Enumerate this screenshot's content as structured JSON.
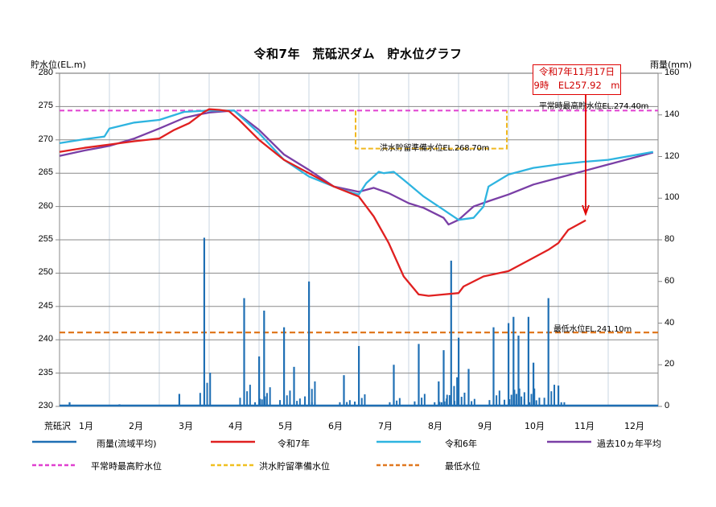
{
  "title": "令和7年　荒砥沢ダム　貯水位グラフ",
  "axes": {
    "left_title": "貯水位(EL.m)",
    "right_title": "雨量(mm)",
    "left_ticks": [
      "280",
      "275",
      "270",
      "265",
      "260",
      "255",
      "250",
      "245",
      "240",
      "235",
      "230"
    ],
    "right_ticks": [
      "160",
      "140",
      "120",
      "100",
      "80",
      "60",
      "40",
      "20",
      "0"
    ],
    "x_prefix": "荒砥沢",
    "months": [
      "1月",
      "2月",
      "3月",
      "4月",
      "5月",
      "6月",
      "7月",
      "8月",
      "9月",
      "10月",
      "11月",
      "12月"
    ]
  },
  "callout": {
    "line1": "令和7年11月17日",
    "line2": "9時　EL257.92　m"
  },
  "annotations": {
    "normal_max": "平常時最高貯水位EL.274.40m",
    "flood_prep": "洪水貯留準備水位EL.268.70m",
    "min_level": "最低水位EL.241.10m"
  },
  "legend": [
    {
      "label": "雨量(流域平均)",
      "color": "#1f6fb4",
      "style": "solid"
    },
    {
      "label": "令和7年",
      "color": "#e02020",
      "style": "solid"
    },
    {
      "label": "令和6年",
      "color": "#2eb4e0",
      "style": "solid"
    },
    {
      "label": "過去10ヵ年平均",
      "color": "#7a3fa6",
      "style": "solid"
    },
    {
      "label": "平常時最高貯水位",
      "color": "#e040d0",
      "style": "dashed"
    },
    {
      "label": "洪水貯留準備水位",
      "color": "#f0c020",
      "style": "dashed"
    },
    {
      "label": "最低水位",
      "color": "#e07820",
      "style": "dashed"
    }
  ],
  "chart_data": {
    "type": "line",
    "title": "令和7年　荒砥沢ダム　貯水位グラフ",
    "xlabel": "",
    "ylabel": "貯水位(EL.m)",
    "y2label": "雨量(mm)",
    "ylim": [
      230,
      280
    ],
    "y2lim": [
      0,
      160
    ],
    "categories": [
      "1月",
      "2月",
      "3月",
      "4月",
      "5月",
      "6月",
      "7月",
      "8月",
      "9月",
      "10月",
      "11月",
      "12月"
    ],
    "reference_lines": [
      {
        "name": "平常時最高貯水位",
        "value": 274.4
      },
      {
        "name": "洪水貯留準備水位",
        "value": 268.7,
        "period": "7月1日〜9月30日"
      },
      {
        "name": "最低水位",
        "value": 241.1
      }
    ],
    "series": [
      {
        "name": "令和7年",
        "x_month": [
          1,
          1.5,
          2,
          2.5,
          3,
          3.3,
          3.6,
          3.9,
          4.0,
          4.2,
          4.4,
          4.6,
          5.0,
          5.5,
          6.0,
          6.5,
          7.0,
          7.3,
          7.6,
          7.9,
          8.2,
          8.4,
          8.7,
          9.0,
          9.1,
          9.5,
          10.0,
          10.3,
          10.5,
          10.8,
          11.0,
          11.2,
          11.55
        ],
        "values": [
          268.2,
          268.8,
          269.3,
          269.8,
          270.2,
          271.5,
          272.5,
          274.2,
          274.6,
          274.5,
          274.3,
          273.0,
          270.0,
          267.0,
          265.0,
          263.0,
          261.5,
          258.5,
          254.5,
          249.5,
          246.8,
          246.6,
          246.8,
          247.0,
          248.0,
          249.5,
          250.3,
          251.5,
          252.3,
          253.5,
          254.5,
          256.5,
          257.92
        ]
      },
      {
        "name": "令和6年",
        "x_month": [
          1,
          1.5,
          1.9,
          2.0,
          2.5,
          3.0,
          3.5,
          4.0,
          4.5,
          5.0,
          5.5,
          6.0,
          6.5,
          6.8,
          7.0,
          7.15,
          7.4,
          7.5,
          7.7,
          7.9,
          8.3,
          8.7,
          8.8,
          9.0,
          9.3,
          9.5,
          9.6,
          10.0,
          10.5,
          11.0,
          11.5,
          12.0,
          12.9
        ],
        "values": [
          269.5,
          270.1,
          270.5,
          271.7,
          272.6,
          273.0,
          274.2,
          274.4,
          274.4,
          271.0,
          267.0,
          264.5,
          263.0,
          262.2,
          261.8,
          263.5,
          265.2,
          265.0,
          265.2,
          264.0,
          261.5,
          259.5,
          259.0,
          258.0,
          258.3,
          260.0,
          263.0,
          264.8,
          265.8,
          266.3,
          266.7,
          267.0,
          268.2
        ]
      },
      {
        "name": "過去10ヵ年平均",
        "x_month": [
          1,
          1.5,
          2,
          2.5,
          3,
          3.5,
          3.8,
          4.0,
          4.5,
          5.0,
          5.5,
          6.0,
          6.5,
          7.0,
          7.3,
          7.6,
          8.0,
          8.3,
          8.7,
          8.8,
          9.0,
          9.3,
          9.6,
          10.0,
          10.5,
          11.0,
          11.5,
          12.0,
          12.9
        ],
        "values": [
          267.6,
          268.4,
          269.1,
          270.2,
          271.7,
          273.3,
          273.8,
          274.1,
          274.4,
          271.5,
          267.8,
          265.5,
          263.0,
          262.2,
          262.8,
          262.0,
          260.5,
          259.8,
          258.3,
          257.3,
          258.0,
          260.0,
          260.8,
          261.8,
          263.3,
          264.3,
          265.3,
          266.3,
          268.1
        ]
      },
      {
        "name": "雨量(流域平均)",
        "axis": "right",
        "peaks": [
          {
            "x_month": 1.2,
            "value": 2
          },
          {
            "x_month": 2.2,
            "value": 1
          },
          {
            "x_month": 3.4,
            "value": 6
          },
          {
            "x_month": 3.9,
            "value": 81
          },
          {
            "x_month": 4.7,
            "value": 52
          },
          {
            "x_month": 5.1,
            "value": 46
          },
          {
            "x_month": 5.0,
            "value": 24
          },
          {
            "x_month": 5.5,
            "value": 38
          },
          {
            "x_month": 5.7,
            "value": 19
          },
          {
            "x_month": 6.0,
            "value": 60
          },
          {
            "x_month": 6.0,
            "value": 9
          },
          {
            "x_month": 6.7,
            "value": 15
          },
          {
            "x_month": 7.0,
            "value": 29
          },
          {
            "x_month": 7.7,
            "value": 20
          },
          {
            "x_month": 8.2,
            "value": 30
          },
          {
            "x_month": 8.6,
            "value": 12
          },
          {
            "x_month": 8.7,
            "value": 27
          },
          {
            "x_month": 8.85,
            "value": 70
          },
          {
            "x_month": 9.0,
            "value": 33
          },
          {
            "x_month": 9.2,
            "value": 18
          },
          {
            "x_month": 9.7,
            "value": 38
          },
          {
            "x_month": 10.0,
            "value": 40
          },
          {
            "x_month": 10.1,
            "value": 43
          },
          {
            "x_month": 10.2,
            "value": 34
          },
          {
            "x_month": 10.4,
            "value": 43
          },
          {
            "x_month": 10.5,
            "value": 21
          },
          {
            "x_month": 10.8,
            "value": 52
          },
          {
            "x_month": 11.0,
            "value": 10
          }
        ]
      }
    ]
  }
}
